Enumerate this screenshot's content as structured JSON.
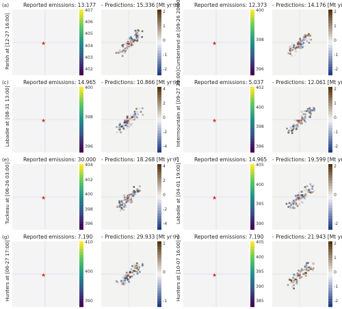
{
  "panels": [
    {
      "label": "(a)",
      "site": "Parish at [12-27 16:00]",
      "reported_title": "Reported emissions: 13.177",
      "pred_title": "- Predictions: 15.336 [Mt yr⁻¹]",
      "left_ticks": [
        "407",
        "406",
        "405",
        "404",
        "403",
        "402"
      ],
      "right_ticks": [
        "2",
        "1",
        "0",
        "-1",
        "-2"
      ]
    },
    {
      "label": "(b)",
      "site": "Cumberland at [09-26 20:00]",
      "reported_title": "Reported emissions: 12.373",
      "pred_title": "- Predictions: 14.176 [Mt yr⁻¹]",
      "left_ticks": [
        "400",
        "398",
        "396"
      ],
      "right_ticks": [
        "2",
        "1",
        "0",
        "-1",
        "-2"
      ]
    },
    {
      "label": "(c)",
      "site": "Labadie at [08-31 13:00]",
      "reported_title": "Reported emissions: 14.965",
      "pred_title": "- Predictions: 10.866 [Mt yr⁻¹]",
      "left_ticks": [
        "400",
        "398",
        "396"
      ],
      "right_ticks": [
        "4",
        "2",
        "0",
        "-2",
        "-4"
      ]
    },
    {
      "label": "(d)",
      "site": "Intermountain at [09-27 21:00]",
      "reported_title": "Reported emissions: 5.037",
      "pred_title": "- Predictions: 12.061 [Mt yr⁻¹]",
      "left_ticks": [
        "402",
        "400",
        "398",
        "396"
      ],
      "right_ticks": [
        "2",
        "1",
        "0",
        "-1",
        "-2"
      ]
    },
    {
      "label": "(e)",
      "site": "Tuckeau at [06-26 03:00]",
      "reported_title": "Reported emissions: 30.000",
      "pred_title": "- Predictions: 18.268 [Mt yr⁻¹]",
      "left_ticks": [
        "404",
        "402",
        "400",
        "398",
        "396"
      ],
      "right_ticks": [
        "4",
        "2",
        "0",
        "-2",
        "-4"
      ]
    },
    {
      "label": "(f)",
      "site": "Labadie at [04-01 19:00]",
      "reported_title": "Reported emissions: 14.965",
      "pred_title": "- Predictions: 19.599 [Mt yr⁻¹]",
      "left_ticks": [
        "405",
        "400",
        "395",
        "390"
      ],
      "right_ticks": [
        "2",
        "0",
        "-2"
      ]
    },
    {
      "label": "(g)",
      "site": "Hunters at [06-27 17:00]",
      "reported_title": "Reported emissions: 7.190",
      "pred_title": "- Predictions: 29.933 [Mt yr⁻¹]",
      "left_ticks": [
        "410",
        "400",
        "390"
      ],
      "right_ticks": [
        "1",
        "0",
        "-1"
      ]
    },
    {
      "label": "(h)",
      "site": "Hunters at [10-07 16:00]",
      "reported_title": "Reported emissions: 7.190",
      "pred_title": "- Predictions: 21.943 [Mt yr⁻¹]",
      "left_ticks": [
        "405",
        "400",
        "395",
        "390",
        "385"
      ],
      "right_ticks": [
        "2",
        "1",
        "0",
        "-1",
        "-2"
      ]
    }
  ],
  "colors": {
    "viridis_dark": "#3b0f70",
    "viridis_mid": "#21918c",
    "viridis_light": "#fde725",
    "source_marker": "#e0301e",
    "div_pos": "#5a3a10",
    "div_neg": "#1f3f7a",
    "grid": "#c8d6e5"
  }
}
